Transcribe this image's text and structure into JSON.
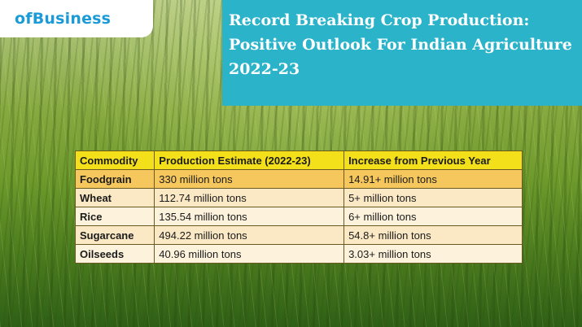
{
  "brand": {
    "logo_text": "ofBusiness"
  },
  "title": "Record Breaking Crop Production: Positive Outlook For Indian Agriculture 2022-23",
  "table": {
    "headers": [
      "Commodity",
      "Production Estimate (2022-23)",
      "Increase from Previous Year"
    ],
    "rows": [
      [
        "Foodgrain",
        "330 million tons",
        "14.91+ million tons"
      ],
      [
        "Wheat",
        "112.74 million tons",
        "5+ million tons"
      ],
      [
        "Rice",
        "135.54 million tons",
        "6+ million tons"
      ],
      [
        "Sugarcane",
        "494.22 million tons",
        "54.8+ million tons"
      ],
      [
        "Oilseeds",
        "40.96 million tons",
        "3.03+ million tons"
      ]
    ]
  },
  "colors": {
    "brand_blue": "#1a9bd7",
    "title_bg": "#2ab3c9",
    "header_yellow": "#f3e01a",
    "highlight_row": "#f6c75c"
  }
}
